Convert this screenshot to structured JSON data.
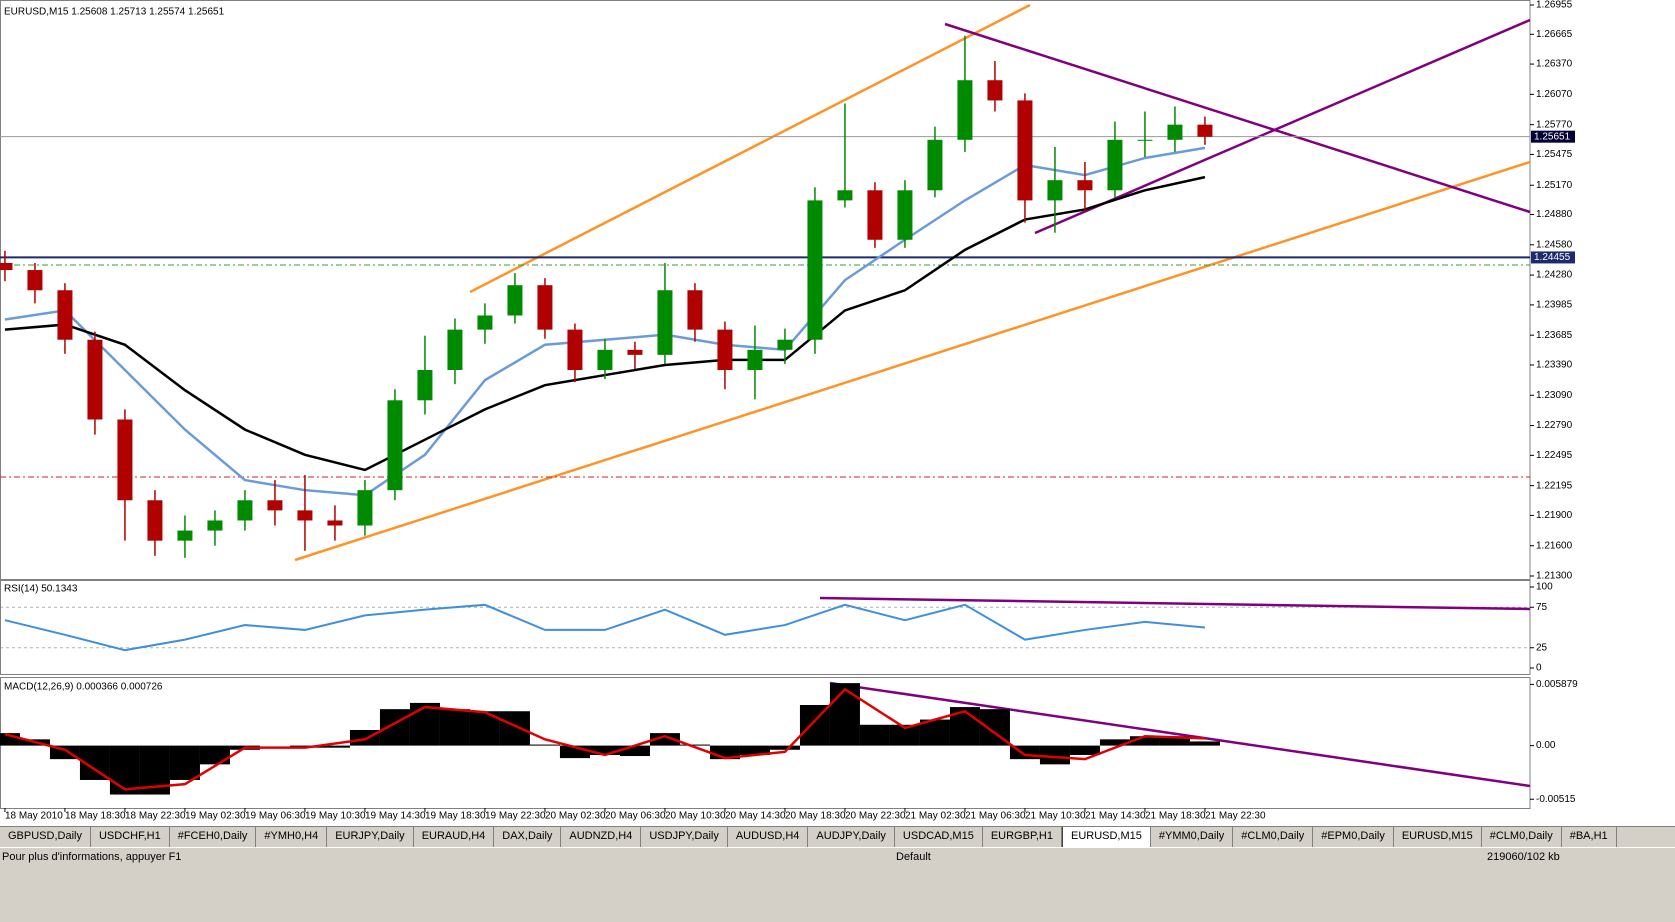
{
  "window": {
    "tabs": [
      "GBPUSD,Daily",
      "USDCHF,H1",
      "#FCEH0,Daily",
      "#YMH0,H4",
      "EURJPY,Daily",
      "EURAUD,H4",
      "DAX,Daily",
      "AUDNZD,H4",
      "USDJPY,Daily",
      "AUDUSD,H4",
      "AUDJPY,Daily",
      "USDCAD,M15",
      "EURGBP,H1",
      "EURUSD,M15",
      "#YMM0,Daily",
      "#CLM0,Daily",
      "#EPM0,Daily",
      "EURUSD,M15",
      "#CLM0,Daily",
      "#BA,H1"
    ],
    "active_tab": 13,
    "status_help": "Pour plus d'informations, appuyer F1",
    "status_profile": "Default",
    "status_traffic": "219060/102 kb"
  },
  "chart_data": [
    {
      "type": "candlestick",
      "title": "EURUSD,M15 1.25608 1.25713 1.25574 1.25651",
      "x": [
        0,
        2,
        4,
        6,
        8,
        10,
        12,
        14,
        16,
        18,
        20,
        22,
        24,
        26,
        28,
        30,
        32,
        34,
        36,
        38,
        40,
        42,
        44,
        46,
        48,
        50,
        52,
        54,
        56,
        58,
        60,
        62,
        64,
        66,
        68,
        70,
        72,
        74,
        76,
        78,
        80
      ],
      "open": [
        1.244,
        1.2433,
        1.2413,
        1.2364,
        1.2285,
        1.2205,
        1.2165,
        1.2175,
        1.2185,
        1.2205,
        1.2195,
        1.2185,
        1.218,
        1.2215,
        1.2304,
        1.2334,
        1.2374,
        1.2388,
        1.2418,
        1.2374,
        1.2334,
        1.2354,
        1.2349,
        1.2413,
        1.2374,
        1.2334,
        1.2354,
        1.2364,
        1.2502,
        1.2512,
        1.2463,
        1.2512,
        1.2562,
        1.2621,
        1.2601,
        1.2502,
        1.2522,
        1.2512,
        1.2562,
        1.2562,
        1.2577
      ],
      "high": [
        1.2452,
        1.244,
        1.242,
        1.2372,
        1.2295,
        1.2215,
        1.219,
        1.2195,
        1.2215,
        1.2225,
        1.223,
        1.22,
        1.2225,
        1.2315,
        1.2368,
        1.2385,
        1.24,
        1.243,
        1.2425,
        1.238,
        1.2365,
        1.2362,
        1.244,
        1.242,
        1.2382,
        1.2378,
        1.2375,
        1.2515,
        1.2598,
        1.252,
        1.2522,
        1.2575,
        1.2665,
        1.264,
        1.2608,
        1.2555,
        1.254,
        1.258,
        1.259,
        1.2595,
        1.2585
      ],
      "low": [
        1.2422,
        1.24,
        1.235,
        1.227,
        1.2165,
        1.215,
        1.2148,
        1.216,
        1.2175,
        1.218,
        1.2155,
        1.2165,
        1.217,
        1.2205,
        1.229,
        1.232,
        1.236,
        1.238,
        1.2365,
        1.2322,
        1.2325,
        1.2335,
        1.234,
        1.2362,
        1.2315,
        1.2305,
        1.234,
        1.235,
        1.2495,
        1.2455,
        1.2455,
        1.2505,
        1.255,
        1.259,
        1.248,
        1.247,
        1.249,
        1.2505,
        1.2545,
        1.255,
        1.2557
      ],
      "close": [
        1.2433,
        1.2413,
        1.2364,
        1.2285,
        1.2205,
        1.2165,
        1.2175,
        1.2185,
        1.2205,
        1.2195,
        1.2185,
        1.218,
        1.2215,
        1.2304,
        1.2334,
        1.2374,
        1.2388,
        1.2418,
        1.2374,
        1.2334,
        1.2354,
        1.2349,
        1.2413,
        1.2374,
        1.2334,
        1.2354,
        1.2364,
        1.2502,
        1.2512,
        1.2463,
        1.2512,
        1.2562,
        1.2621,
        1.2601,
        1.2502,
        1.2522,
        1.2512,
        1.2562,
        1.2562,
        1.2577,
        1.2565
      ],
      "up_color": "#008a00",
      "down_color": "#b00000",
      "lines": [
        {
          "color": "#6b9bd8",
          "x": [
            0,
            4,
            8,
            12,
            16,
            20,
            24,
            28,
            32,
            36,
            40,
            44,
            48,
            52,
            56,
            60,
            64,
            68,
            72,
            76,
            80
          ],
          "values": [
            1.2384,
            1.2393,
            1.2334,
            1.2275,
            1.2225,
            1.2215,
            1.221,
            1.225,
            1.2324,
            1.2359,
            1.2364,
            1.2369,
            1.2359,
            1.2354,
            1.2423,
            1.2463,
            1.2502,
            1.2537,
            1.2527,
            1.2544,
            1.2554
          ]
        },
        {
          "color": "#000000",
          "x": [
            0,
            4,
            8,
            12,
            16,
            20,
            24,
            28,
            32,
            36,
            40,
            44,
            48,
            52,
            56,
            60,
            64,
            68,
            72,
            76,
            80
          ],
          "values": [
            1.2374,
            1.2379,
            1.2359,
            1.2314,
            1.2275,
            1.225,
            1.2235,
            1.2265,
            1.2295,
            1.2319,
            1.2329,
            1.2339,
            1.2344,
            1.2344,
            1.2393,
            1.2413,
            1.2453,
            1.2483,
            1.2493,
            1.2512,
            1.2525
          ]
        }
      ],
      "levels": [
        {
          "value": 1.25651,
          "line": "#9a9a9a",
          "box": "#000033"
        },
        {
          "value": 1.24455,
          "line": "#1c2a6e",
          "box": "#1c2a6e"
        }
      ],
      "xlim": [
        -0.33,
        101.67
      ],
      "ylim": [
        1.213,
        1.26955
      ],
      "yticks": [
        1.26955,
        1.26665,
        {
          "value": 1.2637,
          "label": "1.26370"
        },
        {
          "value": 1.2607,
          "label": "1.26070"
        },
        {
          "value": 1.2577,
          "label": "1.25770"
        },
        1.25475,
        {
          "value": 1.2517,
          "label": "1.25170"
        },
        {
          "value": 1.2488,
          "label": "1.24880"
        },
        {
          "value": 1.2458,
          "label": "1.24580"
        },
        {
          "value": 1.2428,
          "label": "1.24280"
        },
        1.23985,
        1.23685,
        {
          "value": 1.2339,
          "label": "1.23390"
        },
        {
          "value": 1.2309,
          "label": "1.23090"
        },
        {
          "value": 1.2279,
          "label": "1.22790"
        },
        1.22495,
        1.22195,
        {
          "value": 1.219,
          "label": "1.21900"
        },
        {
          "value": 1.216,
          "label": "1.21600"
        },
        {
          "value": 1.213,
          "label": "1.21300"
        }
      ]
    },
    {
      "type": "line",
      "title": "RSI(14) 50.1343",
      "x": [
        0,
        4,
        8,
        12,
        16,
        20,
        24,
        28,
        32,
        36,
        40,
        44,
        48,
        52,
        56,
        60,
        64,
        68,
        72,
        76,
        80
      ],
      "values": [
        59,
        41,
        22,
        35,
        53,
        47,
        65,
        72,
        78,
        47,
        47,
        72,
        41,
        53,
        78,
        59,
        78,
        35,
        47,
        57,
        50
      ],
      "color": "#3f8fdc",
      "xlim": [
        -0.33,
        101.67
      ],
      "ylim": [
        0,
        100
      ],
      "yticks": [
        100,
        75,
        25,
        0
      ],
      "grid": true
    },
    {
      "type": "macd",
      "title": "MACD(12,26,9) 0.000366 0.000726",
      "x": [
        0,
        2,
        4,
        6,
        8,
        10,
        12,
        14,
        16,
        18,
        20,
        22,
        24,
        26,
        28,
        30,
        32,
        34,
        36,
        38,
        40,
        42,
        44,
        46,
        48,
        50,
        52,
        54,
        56,
        58,
        60,
        62,
        64,
        66,
        68,
        70,
        72,
        74,
        76,
        78,
        80
      ],
      "histogram": [
        0.0012,
        0.0006,
        -0.0013,
        -0.0033,
        -0.0047,
        -0.0047,
        -0.0033,
        -0.0018,
        -0.0004,
        0.0,
        -0.0002,
        -0.0002,
        0.0015,
        0.0035,
        0.0041,
        0.0035,
        0.0033,
        0.0033,
        0.0001,
        -0.0012,
        -0.0009,
        -0.001,
        0.0012,
        0.0001,
        -0.0013,
        -0.0009,
        -0.0004,
        0.0039,
        0.006,
        0.002,
        0.002,
        0.0025,
        0.0037,
        0.0035,
        -0.0013,
        -0.0018,
        -0.0009,
        0.0006,
        0.0009,
        0.0009,
        0.0004
      ],
      "histogram_color": "#000000",
      "signal_x": [
        0,
        4,
        8,
        12,
        16,
        20,
        24,
        28,
        32,
        36,
        40,
        44,
        48,
        52,
        56,
        60,
        64,
        68,
        72,
        76,
        80
      ],
      "signal": [
        0.0011,
        -0.0004,
        -0.0042,
        -0.0037,
        -0.0002,
        -0.0002,
        0.0006,
        0.0037,
        0.0032,
        0.0006,
        -0.0009,
        0.0009,
        -0.0012,
        -0.0006,
        0.0054,
        0.0017,
        0.0033,
        -0.0009,
        -0.0013,
        0.0009,
        0.0007
      ],
      "signal_color": "#e00000",
      "xlim": [
        -0.33,
        101.67
      ],
      "ylim": [
        -0.0058,
        0.0063
      ],
      "yticks": [
        0.005879,
        {
          "value": 0,
          "label": "0.00"
        },
        -0.00515
      ],
      "xticks": [
        {
          "value": 0,
          "label": "18 May 2010"
        },
        {
          "value": 4,
          "label": "18 May 18:30"
        },
        {
          "value": 8,
          "label": "18 May 22:30"
        },
        {
          "value": 12,
          "label": "19 May 02:30"
        },
        {
          "value": 16,
          "label": "19 May 06:30"
        },
        {
          "value": 20,
          "label": "19 May 10:30"
        },
        {
          "value": 24,
          "label": "19 May 14:30"
        },
        {
          "value": 28,
          "label": "19 May 18:30"
        },
        {
          "value": 32,
          "label": "19 May 22:30"
        },
        {
          "value": 36,
          "label": "20 May 02:30"
        },
        {
          "value": 40,
          "label": "20 May 06:30"
        },
        {
          "value": 44,
          "label": "20 May 10:30"
        },
        {
          "value": 48,
          "label": "20 May 14:30"
        },
        {
          "value": 52,
          "label": "20 May 18:30"
        },
        {
          "value": 56,
          "label": "20 May 22:30"
        },
        {
          "value": 60,
          "label": "21 May 02:30"
        },
        {
          "value": 64,
          "label": "21 May 06:30"
        },
        {
          "value": 68,
          "label": "21 May 10:30"
        },
        {
          "value": 72,
          "label": "21 May 14:30"
        },
        {
          "value": 76,
          "label": "21 May 18:30"
        },
        {
          "value": 80,
          "label": "21 May 22:30"
        }
      ]
    }
  ]
}
